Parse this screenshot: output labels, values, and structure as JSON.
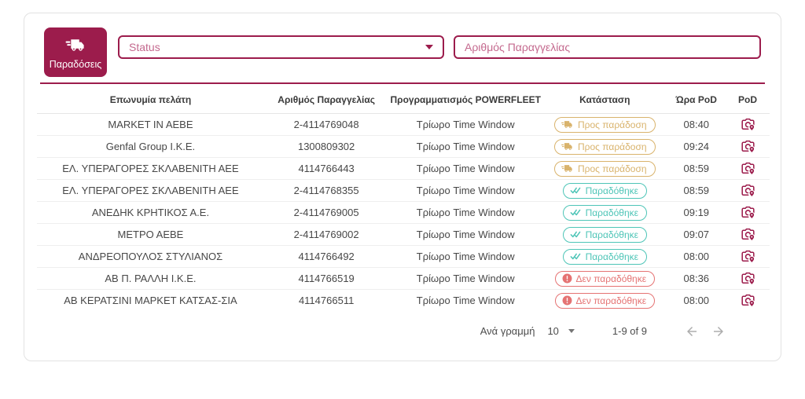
{
  "header": {
    "module_label": "Παραδόσεις",
    "status_filter": {
      "placeholder": "Status"
    },
    "order_filter": {
      "placeholder": "Αριθμός Παραγγελίας"
    }
  },
  "table": {
    "columns": [
      "Επωνυμία πελάτη",
      "Αριθμός Παραγγελίας",
      "Προγραμματισμός POWERFLEET",
      "Κατάσταση",
      "Ώρα PoD",
      "PoD"
    ],
    "rows": [
      {
        "customer": "MARKET IN AEBE",
        "order_number": "2-4114769048",
        "powerfleet": "Τρίωρο Time Window",
        "status_type": "pending",
        "pod_time": "08:40"
      },
      {
        "customer": "Genfal Group I.K.E.",
        "order_number": "1300809302",
        "powerfleet": "Τρίωρο Time Window",
        "status_type": "pending",
        "pod_time": "09:24"
      },
      {
        "customer": "ΕΛ. ΥΠΕΡΑΓΟΡΕΣ ΣΚΛΑΒΕΝΙΤΗ ΑΕΕ",
        "order_number": "4114766443",
        "powerfleet": "Τρίωρο Time Window",
        "status_type": "pending",
        "pod_time": "08:59"
      },
      {
        "customer": "ΕΛ. ΥΠΕΡΑΓΟΡΕΣ ΣΚΛΑΒΕΝΙΤΗ ΑΕΕ",
        "order_number": "2-4114768355",
        "powerfleet": "Τρίωρο Time Window",
        "status_type": "delivered",
        "pod_time": "08:59"
      },
      {
        "customer": "ΑΝΕΔΗΚ ΚΡΗΤΙΚΟΣ Α.Ε.",
        "order_number": "2-4114769005",
        "powerfleet": "Τρίωρο Time Window",
        "status_type": "delivered",
        "pod_time": "09:19"
      },
      {
        "customer": "ΜΕΤΡΟ ΑΕΒΕ",
        "order_number": "2-4114769002",
        "powerfleet": "Τρίωρο Time Window",
        "status_type": "delivered",
        "pod_time": "09:07"
      },
      {
        "customer": "ΑΝΔΡΕΟΠΟΥΛΟΣ ΣΤΥΛΙΑΝΟΣ",
        "order_number": "4114766492",
        "powerfleet": "Τρίωρο Time Window",
        "status_type": "delivered",
        "pod_time": "08:00"
      },
      {
        "customer": "ΑΒ Π. ΡΑΛΛΗ Ι.Κ.Ε.",
        "order_number": "4114766519",
        "powerfleet": "Τρίωρο Time Window",
        "status_type": "not_delivered",
        "pod_time": "08:36"
      },
      {
        "customer": "ΑΒ ΚΕΡΑΤΣΙΝΙ ΜΑΡΚΕΤ ΚΑΤΣΑΣ-ΣΙΑ",
        "order_number": "4114766511",
        "powerfleet": "Τρίωρο Time Window",
        "status_type": "not_delivered",
        "pod_time": "08:00"
      }
    ]
  },
  "status_types": {
    "pending": {
      "label": "Προς παράδοση",
      "color": "#D9B36C",
      "icon": "truck-icon"
    },
    "delivered": {
      "label": "Παραδόθηκε",
      "color": "#4EC5B7",
      "icon": "double-check-icon"
    },
    "not_delivered": {
      "label": "Δεν παραδόθηκε",
      "color": "#E57373",
      "icon": "error-icon"
    }
  },
  "pod_icon": "camera-location-icon",
  "pagination": {
    "rows_per_page_label": "Ανά γραμμή",
    "rows_per_page_value": "10",
    "range_label": "1-9 of 9"
  },
  "colors": {
    "primary": "#9C1C4C",
    "pending": "#D9B36C",
    "delivered": "#4EC5B7",
    "not_delivered": "#E57373",
    "disabled_arrow": "#ADADAD"
  }
}
